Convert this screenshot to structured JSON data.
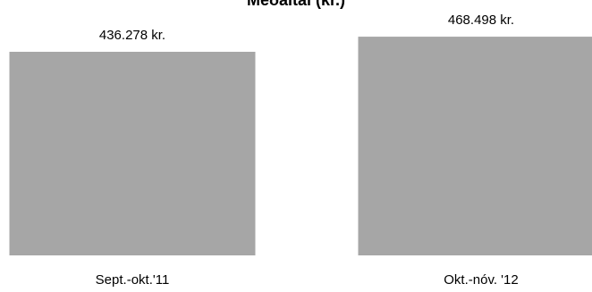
{
  "chart_data": {
    "type": "bar",
    "title": "Meðaltal (kr.)",
    "categories": [
      "Sept.-okt.'11",
      "Okt.-nóv. '12"
    ],
    "values": [
      436278,
      468498
    ],
    "data_labels": [
      "436.278 kr.",
      "468.498 kr."
    ],
    "bar_color": "#a6a6a6",
    "ylim": [
      0,
      480000
    ],
    "grid": false,
    "legend": "none"
  }
}
